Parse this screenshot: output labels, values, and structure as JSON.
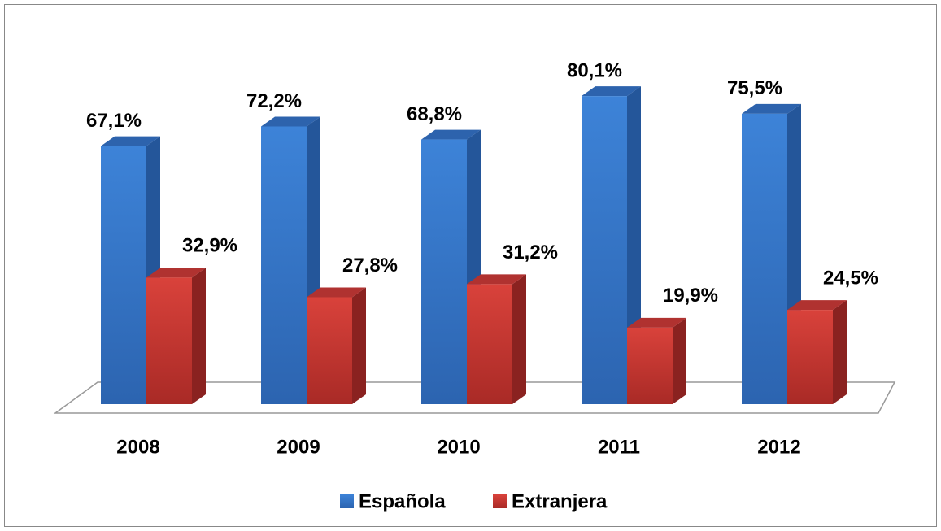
{
  "chart_data": {
    "type": "bar3d",
    "categories": [
      "2008",
      "2009",
      "2010",
      "2011",
      "2012"
    ],
    "series": [
      {
        "name": "Española",
        "color": "#3a7fd5",
        "values": [
          67.1,
          72.2,
          68.8,
          80.1,
          75.5
        ],
        "value_labels": [
          "67,1%",
          "72,2%",
          "68,8%",
          "80,1%",
          "75,5%"
        ]
      },
      {
        "name": "Extranjera",
        "color": "#d43c36",
        "values": [
          32.9,
          27.8,
          31.2,
          19.9,
          24.5
        ],
        "value_labels": [
          "32,9%",
          "27,8%",
          "31,2%",
          "19,9%",
          "24,5%"
        ]
      }
    ],
    "legend": "bottom"
  }
}
